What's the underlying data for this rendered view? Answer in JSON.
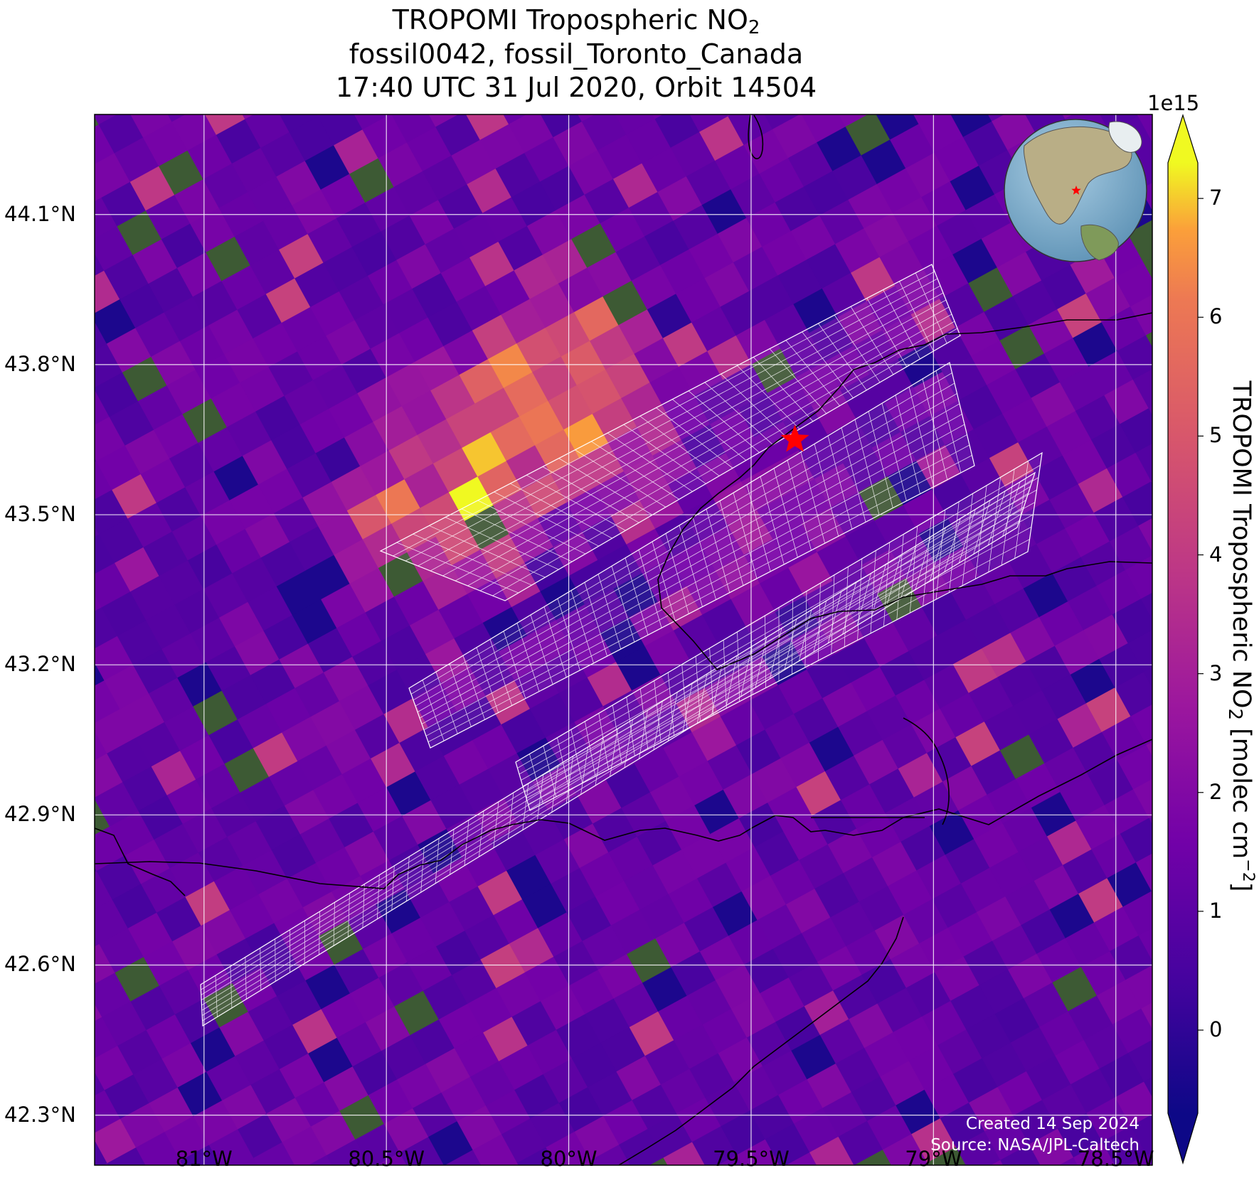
{
  "title": {
    "line1_prefix": "TROPOMI Tropospheric NO",
    "line1_sub": "2",
    "line2": "fossil0042, fossil_Toronto_Canada",
    "line3": "17:40 UTC 31 Jul 2020, Orbit 14504"
  },
  "map": {
    "extent": {
      "lon_min": -81.3,
      "lon_max": -78.4,
      "lat_min": 42.2,
      "lat_max": 44.3
    },
    "lat_ticks": [
      {
        "value": 44.1,
        "label": "44.1°N"
      },
      {
        "value": 43.8,
        "label": "43.8°N"
      },
      {
        "value": 43.5,
        "label": "43.5°N"
      },
      {
        "value": 43.2,
        "label": "43.2°N"
      },
      {
        "value": 42.9,
        "label": "42.9°N"
      },
      {
        "value": 42.6,
        "label": "42.6°N"
      },
      {
        "value": 42.3,
        "label": "42.3°N"
      }
    ],
    "lon_ticks": [
      {
        "value": -81.0,
        "label": "81°W"
      },
      {
        "value": -80.5,
        "label": "80.5°W"
      },
      {
        "value": -80.0,
        "label": "80°W"
      },
      {
        "value": -79.5,
        "label": "79.5°W"
      },
      {
        "value": -79.0,
        "label": "79°W"
      },
      {
        "value": -78.5,
        "label": "78.5°W"
      }
    ],
    "target_marker": {
      "lon": -79.38,
      "lat": 43.65,
      "color": "#ff0000"
    },
    "grid_line_color": "#ffffff",
    "coastline_color": "#000000"
  },
  "colorbar": {
    "colormap": "plasma",
    "vmin": -0.7,
    "vmax": 7.3,
    "extend": "both",
    "exponent_label": "1e15",
    "ticks": [
      {
        "value": 0,
        "label": "0"
      },
      {
        "value": 1,
        "label": "1"
      },
      {
        "value": 2,
        "label": "2"
      },
      {
        "value": 3,
        "label": "3"
      },
      {
        "value": 4,
        "label": "4"
      },
      {
        "value": 5,
        "label": "5"
      },
      {
        "value": 6,
        "label": "6"
      },
      {
        "value": 7,
        "label": "7"
      }
    ],
    "label_prefix": "TROPOMI Tropospheric NO",
    "label_sub": "2",
    "label_mid": " [molec cm",
    "label_sup": "−2",
    "label_suffix": "]"
  },
  "credits": {
    "created": "Created 14 Sep 2024",
    "source": "Source: NASA/JPL-Caltech"
  }
}
